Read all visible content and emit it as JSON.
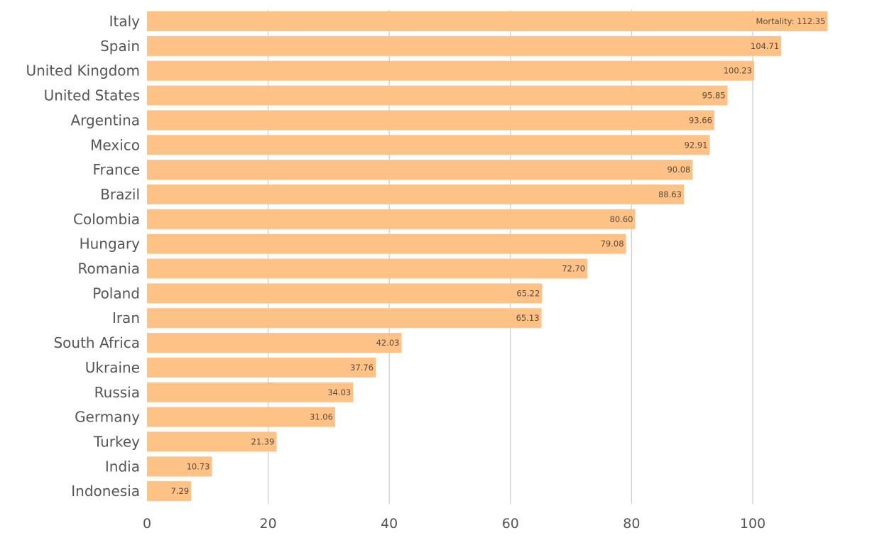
{
  "chart_data": {
    "type": "bar",
    "orientation": "horizontal",
    "categories": [
      "Italy",
      "Spain",
      "United Kingdom",
      "United States",
      "Argentina",
      "Mexico",
      "France",
      "Brazil",
      "Colombia",
      "Hungary",
      "Romania",
      "Poland",
      "Iran",
      "South Africa",
      "Ukraine",
      "Russia",
      "Germany",
      "Turkey",
      "India",
      "Indonesia"
    ],
    "series": [
      {
        "values": [
          112.35,
          104.71,
          100.23,
          95.85,
          93.66,
          92.91,
          90.08,
          88.63,
          80.6,
          79.08,
          72.7,
          65.22,
          65.13,
          42.03,
          37.76,
          34.03,
          31.06,
          21.39,
          10.73,
          7.29
        ],
        "data_labels": [
          "Mortality: 112.35",
          "104.71",
          "100.23",
          "95.85",
          "93.66",
          "92.91",
          "90.08",
          "88.63",
          "80.60",
          "79.08",
          "72.70",
          "65.22",
          "65.13",
          "42.03",
          "37.76",
          "34.03",
          "31.06",
          "21.39",
          "10.73",
          "7.29"
        ],
        "color": "#fec287"
      }
    ],
    "xlim": [
      0,
      120
    ],
    "xticks": [
      0,
      20,
      40,
      60,
      80,
      100
    ],
    "xtick_labels": [
      "0",
      "20",
      "40",
      "60",
      "80",
      "100"
    ],
    "title": "",
    "xlabel": "",
    "ylabel": "",
    "grid": "vertical",
    "legend": "none",
    "colors": {
      "bar": "#fec287",
      "grid": "#cfcfcf",
      "text": "#555555"
    }
  }
}
